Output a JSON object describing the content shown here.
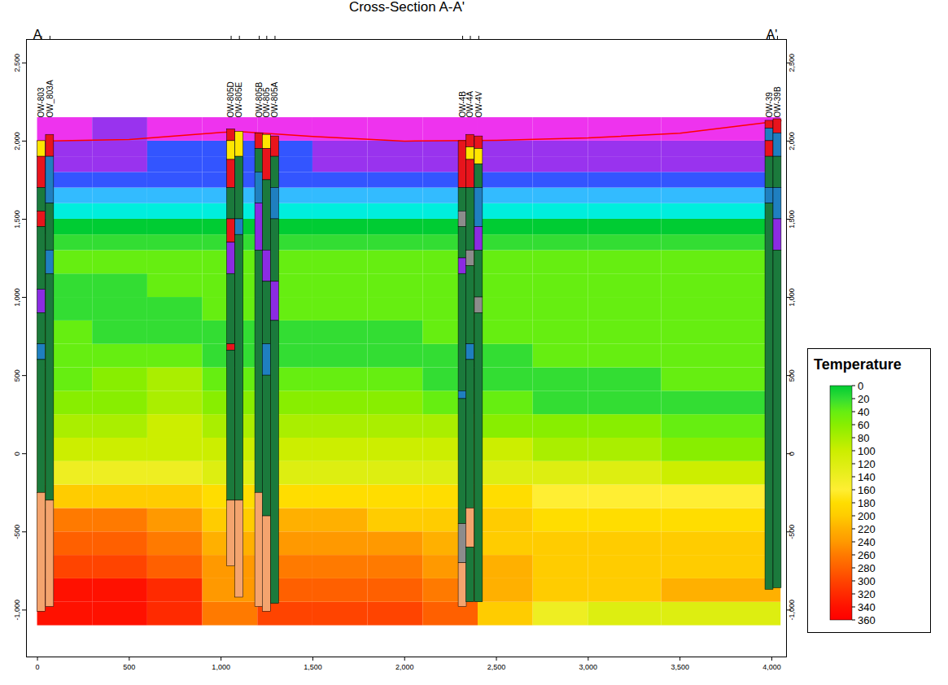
{
  "chart_data": {
    "type": "heatmap",
    "title": "Cross-Section A-A'",
    "section_ends": [
      {
        "label": "A",
        "x": 0
      },
      {
        "label": "A'",
        "x": 4000
      }
    ],
    "xlim": [
      -60,
      4080
    ],
    "ylim": [
      -1300,
      2650
    ],
    "xticks": [
      0,
      500,
      {
        "value": 1000,
        "label": "1,000"
      },
      {
        "value": 1500,
        "label": "1,500"
      },
      {
        "value": 2000,
        "label": "2,000"
      },
      {
        "value": 2500,
        "label": "2,500"
      },
      {
        "value": 3000,
        "label": "3,000"
      },
      {
        "value": 3500,
        "label": "3,500"
      },
      {
        "value": 4000,
        "label": "4,000"
      }
    ],
    "yticks": [
      {
        "value": -1000,
        "label": "-1,000"
      },
      -500,
      0,
      500,
      {
        "value": 1000,
        "label": "1,000"
      },
      {
        "value": 1500,
        "label": "1,500"
      },
      {
        "value": 2000,
        "label": "2,000"
      },
      {
        "value": 2500,
        "label": "2,500"
      }
    ],
    "x_edges": [
      0,
      300,
      600,
      900,
      1200,
      1500,
      1800,
      2100,
      2400,
      2700,
      3000,
      3400,
      4050
    ],
    "y_edges": [
      -1100,
      -950,
      -800,
      -650,
      -500,
      -350,
      -200,
      -50,
      100,
      250,
      400,
      550,
      700,
      850,
      1000,
      1150,
      1300,
      1400,
      1500,
      1600,
      1700,
      1800,
      1900,
      2000,
      2150
    ],
    "temperature": [
      [
        340,
        340,
        320,
        260,
        300,
        300,
        300,
        280,
        200,
        140,
        120,
        120
      ],
      [
        340,
        340,
        320,
        240,
        280,
        280,
        280,
        260,
        220,
        200,
        200,
        220
      ],
      [
        300,
        300,
        280,
        240,
        260,
        260,
        260,
        240,
        220,
        200,
        200,
        200
      ],
      [
        280,
        280,
        260,
        220,
        240,
        240,
        240,
        220,
        200,
        200,
        200,
        200
      ],
      [
        260,
        260,
        240,
        200,
        220,
        220,
        200,
        200,
        200,
        180,
        180,
        180
      ],
      [
        200,
        200,
        200,
        180,
        180,
        180,
        180,
        180,
        180,
        160,
        160,
        160
      ],
      [
        140,
        140,
        140,
        120,
        120,
        120,
        120,
        120,
        120,
        120,
        120,
        100
      ],
      [
        100,
        100,
        100,
        100,
        100,
        100,
        100,
        100,
        100,
        80,
        80,
        60
      ],
      [
        80,
        80,
        100,
        80,
        80,
        80,
        80,
        80,
        60,
        60,
        60,
        40
      ],
      [
        60,
        60,
        80,
        60,
        60,
        60,
        60,
        40,
        40,
        20,
        20,
        20
      ],
      [
        40,
        60,
        80,
        40,
        40,
        40,
        40,
        20,
        20,
        20,
        20,
        40
      ],
      [
        40,
        40,
        40,
        20,
        20,
        20,
        20,
        20,
        20,
        40,
        40,
        40
      ],
      [
        40,
        20,
        20,
        20,
        20,
        20,
        20,
        40,
        40,
        40,
        40,
        40
      ],
      [
        20,
        20,
        20,
        40,
        40,
        40,
        40,
        40,
        40,
        40,
        40,
        40
      ],
      [
        20,
        20,
        40,
        40,
        40,
        40,
        40,
        40,
        40,
        40,
        40,
        40
      ],
      [
        40,
        40,
        40,
        40,
        40,
        40,
        40,
        40,
        40,
        40,
        40,
        40
      ],
      [
        20,
        20,
        20,
        20,
        20,
        20,
        20,
        20,
        20,
        20,
        20,
        20
      ],
      [
        0,
        0,
        0,
        0,
        0,
        0,
        0,
        0,
        0,
        0,
        0,
        0
      ],
      [
        -20,
        -20,
        -20,
        -20,
        -20,
        -20,
        -20,
        -20,
        -20,
        -20,
        -20,
        -20
      ],
      [
        -40,
        -40,
        -40,
        -40,
        -40,
        -40,
        -40,
        -40,
        -40,
        -40,
        -40,
        -40
      ],
      [
        -60,
        -60,
        -60,
        -60,
        -60,
        -60,
        -60,
        -60,
        -60,
        -60,
        -60,
        -60
      ],
      [
        -80,
        -80,
        -60,
        -60,
        -60,
        -80,
        -80,
        -80,
        -80,
        -80,
        -80,
        -80
      ],
      [
        -80,
        -80,
        -60,
        -60,
        -60,
        -80,
        -80,
        -80,
        -80,
        -80,
        -80,
        -80
      ],
      [
        -100,
        -80,
        -100,
        -100,
        -100,
        -100,
        -100,
        -100,
        -100,
        -100,
        -100,
        -100
      ]
    ],
    "colorbar": {
      "title": "Temperature",
      "range": [
        0,
        360
      ],
      "ticks": [
        0,
        20,
        40,
        60,
        80,
        100,
        120,
        140,
        160,
        180,
        200,
        220,
        240,
        260,
        280,
        300,
        320,
        340,
        360
      ],
      "colors": [
        "#00cc33",
        "#33dd33",
        "#66ee11",
        "#88ee00",
        "#aaee00",
        "#ccee00",
        "#ddee11",
        "#eeee22",
        "#ffee33",
        "#ffdd00",
        "#ffcc00",
        "#ffb000",
        "#ff9900",
        "#ff7a00",
        "#ff6000",
        "#ff4400",
        "#ff2a00",
        "#ff1100",
        "#ff0000"
      ]
    },
    "surface": {
      "color": "#ff0000",
      "x": [
        0,
        500,
        1000,
        1100,
        1500,
        2000,
        2500,
        3000,
        3500,
        4050
      ],
      "y": [
        2000,
        2010,
        2055,
        2060,
        2030,
        2000,
        2005,
        2020,
        2050,
        2130
      ]
    },
    "wells": [
      {
        "name": "OW-803",
        "x": 22,
        "intervals": [
          [
            2000,
            1900,
            "#ffe600"
          ],
          [
            1900,
            1700,
            "#e8141c"
          ],
          [
            1700,
            1550,
            "#1b7a3c"
          ],
          [
            1550,
            1450,
            "#e8141c"
          ],
          [
            1450,
            1050,
            "#1b7a3c"
          ],
          [
            1050,
            900,
            "#8b2be2"
          ],
          [
            900,
            700,
            "#1b7a3c"
          ],
          [
            700,
            600,
            "#1f7fc0"
          ],
          [
            600,
            -250,
            "#1b7a3c"
          ],
          [
            -250,
            -1010,
            "#f4a46e"
          ]
        ]
      },
      {
        "name": "OW_803A",
        "x": 68,
        "intervals": [
          [
            2040,
            1900,
            "#e8141c"
          ],
          [
            1900,
            1600,
            "#1f7fc0"
          ],
          [
            1600,
            1300,
            "#1b7a3c"
          ],
          [
            1300,
            1150,
            "#1f7fc0"
          ],
          [
            1150,
            -300,
            "#1b7a3c"
          ],
          [
            -300,
            -980,
            "#f4a46e"
          ]
        ]
      },
      {
        "name": "OW-805D",
        "x": 1055,
        "intervals": [
          [
            2075,
            2000,
            "#e8141c"
          ],
          [
            2000,
            1880,
            "#ffe600"
          ],
          [
            1880,
            1700,
            "#e8141c"
          ],
          [
            1700,
            1500,
            "#1b7a3c"
          ],
          [
            1500,
            1350,
            "#e8141c"
          ],
          [
            1350,
            1150,
            "#8b2be2"
          ],
          [
            1150,
            700,
            "#1b7a3c"
          ],
          [
            700,
            660,
            "#e8141c"
          ],
          [
            660,
            -300,
            "#1b7a3c"
          ],
          [
            -300,
            -720,
            "#f4a46e"
          ]
        ]
      },
      {
        "name": "OW-805E",
        "x": 1100,
        "intervals": [
          [
            2060,
            1900,
            "#ffe600"
          ],
          [
            1900,
            1500,
            "#1b7a3c"
          ],
          [
            1500,
            1400,
            "#1f7fc0"
          ],
          [
            1400,
            -300,
            "#1b7a3c"
          ],
          [
            -300,
            -920,
            "#f4a46e"
          ]
        ]
      },
      {
        "name": "OW-805B",
        "x": 1208,
        "intervals": [
          [
            2050,
            1950,
            "#e8141c"
          ],
          [
            1950,
            1800,
            "#1b7a3c"
          ],
          [
            1800,
            1600,
            "#1f7fc0"
          ],
          [
            1600,
            1300,
            "#8b2be2"
          ],
          [
            1300,
            -250,
            "#1b7a3c"
          ],
          [
            -250,
            -980,
            "#f4a46e"
          ]
        ]
      },
      {
        "name": "OW-805",
        "x": 1249,
        "intervals": [
          [
            2040,
            1950,
            "#ffe600"
          ],
          [
            1950,
            1750,
            "#e8141c"
          ],
          [
            1750,
            1300,
            "#1b7a3c"
          ],
          [
            1300,
            1100,
            "#8b2be2"
          ],
          [
            1100,
            700,
            "#1b7a3c"
          ],
          [
            700,
            500,
            "#1f7fc0"
          ],
          [
            500,
            -400,
            "#1b7a3c"
          ],
          [
            -400,
            -1010,
            "#f4a46e"
          ]
        ]
      },
      {
        "name": "OW-805A",
        "x": 1294,
        "intervals": [
          [
            2030,
            1900,
            "#e8141c"
          ],
          [
            1900,
            1700,
            "#1b7a3c"
          ],
          [
            1700,
            1500,
            "#1f7fc0"
          ],
          [
            1500,
            1100,
            "#1b7a3c"
          ],
          [
            1100,
            850,
            "#8b2be2"
          ],
          [
            850,
            -960,
            "#1b7a3c"
          ]
        ]
      },
      {
        "name": "OW-4B",
        "x": 2316,
        "intervals": [
          [
            2000,
            1700,
            "#e8141c"
          ],
          [
            1700,
            1550,
            "#1b7a3c"
          ],
          [
            1550,
            1450,
            "#8c8c8c"
          ],
          [
            1450,
            1250,
            "#1b7a3c"
          ],
          [
            1250,
            1150,
            "#8b2be2"
          ],
          [
            1150,
            400,
            "#1b7a3c"
          ],
          [
            400,
            350,
            "#1f7fc0"
          ],
          [
            350,
            -450,
            "#1b7a3c"
          ],
          [
            -450,
            -700,
            "#8c8c8c"
          ],
          [
            -700,
            -980,
            "#f4a46e"
          ]
        ]
      },
      {
        "name": "OW-4A",
        "x": 2358,
        "intervals": [
          [
            2040,
            1960,
            "#e8141c"
          ],
          [
            1960,
            1880,
            "#ffe600"
          ],
          [
            1880,
            1700,
            "#e8141c"
          ],
          [
            1700,
            1300,
            "#1b7a3c"
          ],
          [
            1300,
            1200,
            "#8c8c8c"
          ],
          [
            1200,
            700,
            "#1b7a3c"
          ],
          [
            700,
            600,
            "#1f7fc0"
          ],
          [
            600,
            -350,
            "#1b7a3c"
          ],
          [
            -350,
            -600,
            "#f4a46e"
          ],
          [
            -600,
            -950,
            "#1b7a3c"
          ]
        ]
      },
      {
        "name": "OW-4V",
        "x": 2404,
        "intervals": [
          [
            2030,
            1950,
            "#e8141c"
          ],
          [
            1950,
            1850,
            "#ffe600"
          ],
          [
            1850,
            1700,
            "#1b7a3c"
          ],
          [
            1700,
            1450,
            "#1f7fc0"
          ],
          [
            1450,
            1300,
            "#8b2be2"
          ],
          [
            1300,
            1000,
            "#1b7a3c"
          ],
          [
            1000,
            900,
            "#8c8c8c"
          ],
          [
            900,
            -950,
            "#1b7a3c"
          ]
        ]
      },
      {
        "name": "OW-39",
        "x": 3987,
        "intervals": [
          [
            2130,
            2080,
            "#e8141c"
          ],
          [
            2080,
            2000,
            "#1f7fc0"
          ],
          [
            2000,
            1900,
            "#e8141c"
          ],
          [
            1900,
            1700,
            "#1b7a3c"
          ],
          [
            1700,
            1600,
            "#1f7fc0"
          ],
          [
            1600,
            -870,
            "#1b7a3c"
          ]
        ]
      },
      {
        "name": "OW-39B",
        "x": 4031,
        "intervals": [
          [
            2140,
            2050,
            "#e8141c"
          ],
          [
            2050,
            1900,
            "#1f7fc0"
          ],
          [
            1900,
            1700,
            "#1b7a3c"
          ],
          [
            1700,
            1500,
            "#1f7fc0"
          ],
          [
            1500,
            1300,
            "#8b2be2"
          ],
          [
            1300,
            -860,
            "#1b7a3c"
          ]
        ]
      }
    ]
  }
}
